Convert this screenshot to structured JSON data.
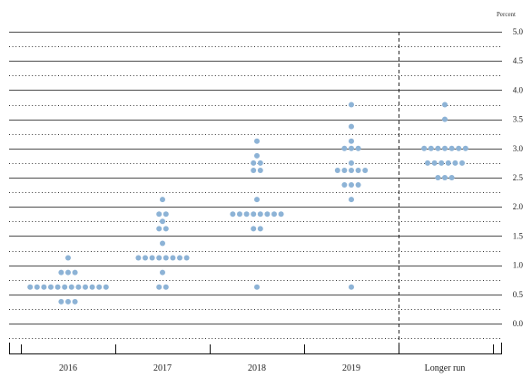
{
  "chart_data": {
    "type": "scatter",
    "unit_label": "Percent",
    "ylim": [
      -0.25,
      5.0
    ],
    "y_ticks": [
      "0.0",
      "0.5",
      "1.0",
      "1.5",
      "2.0",
      "2.5",
      "3.0",
      "3.5",
      "4.0",
      "4.5",
      "5.0"
    ],
    "categories": [
      "2016",
      "2017",
      "2018",
      "2019",
      "Longer run"
    ],
    "dot_color": "#8db3d6",
    "grid": "solid lines at whole and half percent, dotted lines at quarter percent",
    "separator": "dashed vertical line before Longer run",
    "series": [
      {
        "category": "2016",
        "points": [
          {
            "value": 1.125,
            "count": 1
          },
          {
            "value": 0.875,
            "count": 3
          },
          {
            "value": 0.625,
            "count": 12
          },
          {
            "value": 0.375,
            "count": 3
          }
        ]
      },
      {
        "category": "2017",
        "points": [
          {
            "value": 2.125,
            "count": 1
          },
          {
            "value": 1.875,
            "count": 2
          },
          {
            "value": 1.75,
            "count": 1
          },
          {
            "value": 1.625,
            "count": 2
          },
          {
            "value": 1.375,
            "count": 1
          },
          {
            "value": 1.125,
            "count": 8
          },
          {
            "value": 0.875,
            "count": 1
          },
          {
            "value": 0.625,
            "count": 2
          }
        ]
      },
      {
        "category": "2018",
        "points": [
          {
            "value": 3.125,
            "count": 1
          },
          {
            "value": 2.875,
            "count": 1
          },
          {
            "value": 2.75,
            "count": 2
          },
          {
            "value": 2.625,
            "count": 2
          },
          {
            "value": 2.125,
            "count": 1
          },
          {
            "value": 1.875,
            "count": 8
          },
          {
            "value": 1.625,
            "count": 2
          },
          {
            "value": 0.625,
            "count": 1
          }
        ]
      },
      {
        "category": "2019",
        "points": [
          {
            "value": 3.75,
            "count": 1
          },
          {
            "value": 3.375,
            "count": 1
          },
          {
            "value": 3.125,
            "count": 1
          },
          {
            "value": 3.0,
            "count": 3
          },
          {
            "value": 2.75,
            "count": 1
          },
          {
            "value": 2.625,
            "count": 5
          },
          {
            "value": 2.375,
            "count": 3
          },
          {
            "value": 2.125,
            "count": 1
          },
          {
            "value": 0.625,
            "count": 1
          }
        ]
      },
      {
        "category": "Longer run",
        "points": [
          {
            "value": 3.75,
            "count": 1
          },
          {
            "value": 3.5,
            "count": 1
          },
          {
            "value": 3.0,
            "count": 7
          },
          {
            "value": 2.75,
            "count": 6
          },
          {
            "value": 2.5,
            "count": 3
          }
        ]
      }
    ]
  }
}
